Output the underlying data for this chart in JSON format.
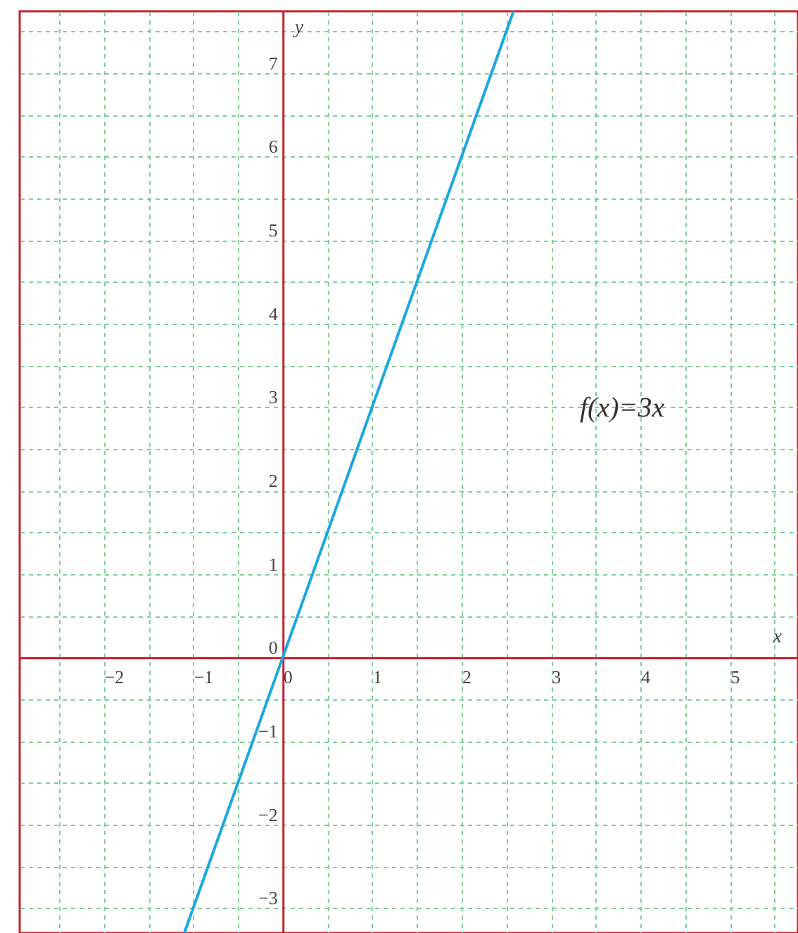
{
  "chart_data": {
    "type": "line",
    "xlabel": "x",
    "ylabel": "y",
    "x": [
      -1.1,
      0,
      1,
      2,
      2.58
    ],
    "series": [
      {
        "color": "#1ba8e0",
        "values": [
          -3.3,
          0,
          3,
          6,
          7.74
        ]
      }
    ],
    "xlim": [
      -2.94,
      5.76
    ],
    "ylim": [
      -3.3,
      7.74
    ],
    "xticks": [
      -2,
      -1,
      0,
      1,
      2,
      3,
      4,
      5
    ],
    "yticks": [
      -3,
      -2,
      -1,
      0,
      1,
      2,
      3,
      4,
      5,
      6,
      7
    ],
    "grid": true,
    "annotations": [
      "f(x)=3x"
    ]
  }
}
